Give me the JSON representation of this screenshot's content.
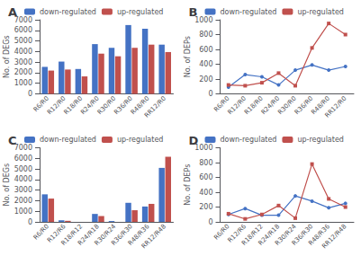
{
  "chart_data": [
    {
      "type": "bar",
      "title": "A",
      "categories": [
        "R6/R0",
        "R12/R0",
        "R18/R0",
        "R24/R0",
        "R30/R0",
        "R36/R0",
        "R48/R0",
        "RR12/R0"
      ],
      "series": [
        {
          "name": "down-regulated",
          "color": "#4472c4",
          "values": [
            2550,
            3050,
            2350,
            4700,
            4350,
            6500,
            6150,
            4650
          ]
        },
        {
          "name": "up-regulated",
          "color": "#c0504d",
          "values": [
            2200,
            2300,
            1650,
            3800,
            3550,
            4350,
            4650,
            3950
          ]
        }
      ],
      "ylabel": "No. of DEGs",
      "ylim": [
        0,
        7000
      ],
      "yticks": [
        0,
        1000,
        2000,
        3000,
        4000,
        5000,
        6000,
        7000
      ],
      "grid": false,
      "legend": "upper left"
    },
    {
      "type": "line",
      "title": "B",
      "categories": [
        "R6/R0",
        "R12/R0",
        "R18/R0",
        "R24/R0",
        "R30/R0",
        "R36/R0",
        "R48/R0",
        "RR12/R0"
      ],
      "series": [
        {
          "name": "down-regulated",
          "color": "#4472c4",
          "marker": "circle",
          "values": [
            90,
            260,
            230,
            120,
            320,
            390,
            320,
            370
          ]
        },
        {
          "name": "up-regulated",
          "color": "#c0504d",
          "marker": "square",
          "values": [
            120,
            110,
            150,
            280,
            110,
            620,
            950,
            800
          ]
        }
      ],
      "ylabel": "No. of DEPs",
      "ylim": [
        0,
        1000
      ],
      "yticks": [
        0,
        200,
        400,
        600,
        800,
        1000
      ],
      "grid": false,
      "legend": "upper left"
    },
    {
      "type": "bar",
      "title": "C",
      "categories": [
        "R6/R0",
        "R12/R6",
        "R18/R12",
        "R24/R18",
        "R30/R24",
        "R36/R30",
        "R48/R36",
        "RR12/R48"
      ],
      "series": [
        {
          "name": "down-regulated",
          "color": "#4472c4",
          "values": [
            2600,
            150,
            0,
            750,
            80,
            1800,
            1450,
            5100
          ]
        },
        {
          "name": "up-regulated",
          "color": "#c0504d",
          "values": [
            2200,
            100,
            0,
            550,
            0,
            1100,
            1700,
            6150
          ]
        }
      ],
      "ylabel": "No. of DEGs",
      "ylim": [
        0,
        7000
      ],
      "yticks": [
        0,
        1000,
        2000,
        3000,
        4000,
        5000,
        6000,
        7000
      ],
      "grid": false,
      "legend": "upper left"
    },
    {
      "type": "line",
      "title": "D",
      "categories": [
        "R6/R0",
        "R12/R6",
        "R18/R12",
        "R24/R18",
        "R30/R24",
        "R36/R30",
        "R48/R36",
        "RR12/R48"
      ],
      "series": [
        {
          "name": "down-regulated",
          "color": "#4472c4",
          "marker": "circle",
          "values": [
            100,
            180,
            90,
            90,
            350,
            280,
            190,
            250
          ]
        },
        {
          "name": "up-regulated",
          "color": "#c0504d",
          "marker": "square",
          "values": [
            110,
            40,
            100,
            220,
            50,
            780,
            310,
            200
          ]
        }
      ],
      "ylabel": "No. of DEPs",
      "ylim": [
        0,
        1000
      ],
      "yticks": [
        0,
        200,
        400,
        600,
        800,
        1000
      ],
      "grid": false,
      "legend": "upper left"
    }
  ]
}
